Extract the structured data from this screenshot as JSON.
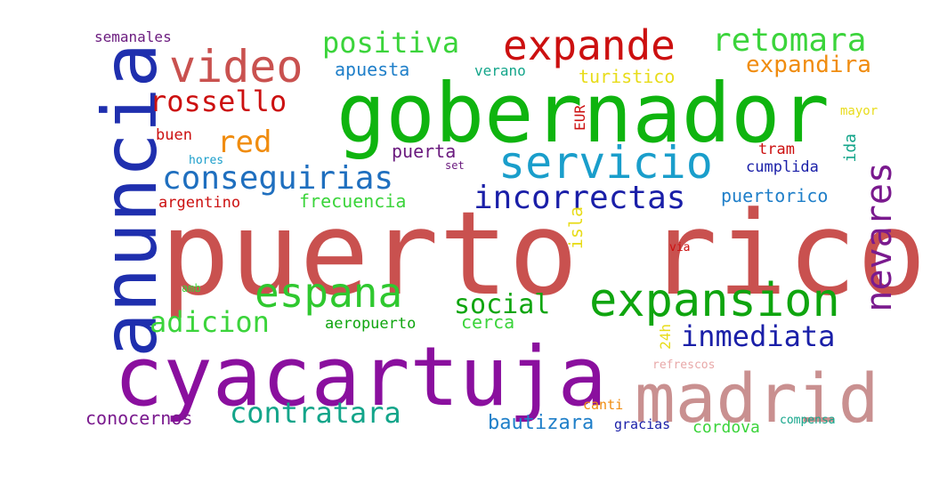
{
  "word_cloud": {
    "words": [
      {
        "text": "puerto rico",
        "color": "#c9514f"
      },
      {
        "text": "cyacartuja",
        "color": "#8a0f9e"
      },
      {
        "text": "gobernador",
        "color": "#0fb40f"
      },
      {
        "text": "anuncia",
        "color": "#1f2fae"
      },
      {
        "text": "madrid",
        "color": "#c99090"
      },
      {
        "text": "expansion",
        "color": "#0fa50f"
      },
      {
        "text": "servicio",
        "color": "#1a9ecb"
      },
      {
        "text": "video",
        "color": "#c9514f"
      },
      {
        "text": "expande",
        "color": "#cc1010"
      },
      {
        "text": "espana",
        "color": "#2fc82f"
      },
      {
        "text": "nevares",
        "color": "#7a1a8e"
      },
      {
        "text": "conseguirias",
        "color": "#1f6fbf"
      },
      {
        "text": "incorrectas",
        "color": "#1a1fa8"
      },
      {
        "text": "retomara",
        "color": "#3bd43b"
      },
      {
        "text": "positiva",
        "color": "#3bd43b"
      },
      {
        "text": "contratara",
        "color": "#13a58a"
      },
      {
        "text": "inmediata",
        "color": "#1a1fa8"
      },
      {
        "text": "rossello",
        "color": "#cc1010"
      },
      {
        "text": "adicion",
        "color": "#3bd43b"
      },
      {
        "text": "social",
        "color": "#0fa50f"
      },
      {
        "text": "expandira",
        "color": "#f08c0f"
      },
      {
        "text": "red",
        "color": "#f08c0f"
      },
      {
        "text": "bautizara",
        "color": "#1f7fc9"
      },
      {
        "text": "conocernos",
        "color": "#7a1a8e"
      },
      {
        "text": "frecuencia",
        "color": "#3bd43b"
      },
      {
        "text": "apuesta",
        "color": "#1f7fc9"
      },
      {
        "text": "turistico",
        "color": "#e8dc1a"
      },
      {
        "text": "puertorico",
        "color": "#1f7fc9"
      },
      {
        "text": "cerca",
        "color": "#3bd43b"
      },
      {
        "text": "cordova",
        "color": "#3bd43b"
      },
      {
        "text": "puerta",
        "color": "#6a1a7e"
      },
      {
        "text": "semanales",
        "color": "#6a1a7e"
      },
      {
        "text": "aeropuerto",
        "color": "#0fa50f"
      },
      {
        "text": "argentino",
        "color": "#cc1010"
      },
      {
        "text": "cumplida",
        "color": "#1a1fa8"
      },
      {
        "text": "verano",
        "color": "#13a58a"
      },
      {
        "text": "tram",
        "color": "#cc1010"
      },
      {
        "text": "buen",
        "color": "#cc1010"
      },
      {
        "text": "isla",
        "color": "#e8dc1a"
      },
      {
        "text": "ida",
        "color": "#13a58a"
      },
      {
        "text": "canti",
        "color": "#f08c0f"
      },
      {
        "text": "gracias",
        "color": "#1a1fa8"
      },
      {
        "text": "compensa",
        "color": "#13a58a"
      },
      {
        "text": "refrescos",
        "color": "#e8a8a8"
      },
      {
        "text": "mayor",
        "color": "#e8dc1a"
      },
      {
        "text": "EUR",
        "color": "#cc1010"
      },
      {
        "text": "24h",
        "color": "#e8dc1a"
      },
      {
        "text": "hores",
        "color": "#1a9ecb"
      },
      {
        "text": "amb",
        "color": "#3bd43b"
      },
      {
        "text": "set",
        "color": "#6a1a7e"
      },
      {
        "text": "via",
        "color": "#cc1010"
      }
    ]
  }
}
